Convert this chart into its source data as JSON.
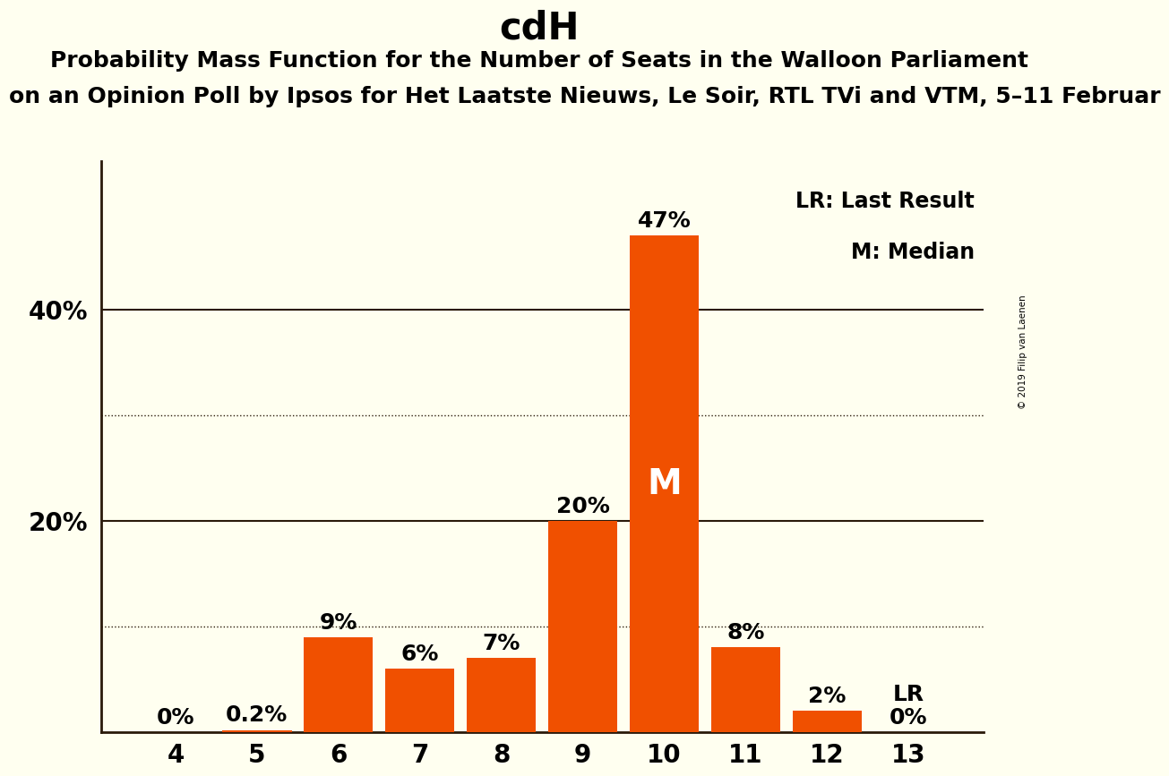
{
  "title": "cdH",
  "subtitle1": "Probability Mass Function for the Number of Seats in the Walloon Parliament",
  "subtitle2": "on an Opinion Poll by Ipsos for Het Laatste Nieuws, Le Soir, RTL TVi and VTM, 5–11 Februar",
  "categories": [
    4,
    5,
    6,
    7,
    8,
    9,
    10,
    11,
    12,
    13
  ],
  "values": [
    0.0,
    0.2,
    9.0,
    6.0,
    7.0,
    20.0,
    47.0,
    8.0,
    2.0,
    0.0
  ],
  "bar_color": "#f05000",
  "background_color": "#fffff0",
  "solid_gridlines": [
    20,
    40
  ],
  "dotted_gridlines": [
    10,
    30
  ],
  "bar_labels": [
    "0%",
    "0.2%",
    "9%",
    "6%",
    "7%",
    "20%",
    "47%",
    "8%",
    "2%",
    "0%"
  ],
  "median_bar": 10,
  "median_label": "M",
  "lr_bar": 13,
  "lr_label": "LR",
  "legend_lr": "LR: Last Result",
  "legend_m": "M: Median",
  "copyright": "© 2019 Filip van Laenen",
  "title_fontsize": 30,
  "subtitle1_fontsize": 18,
  "subtitle2_fontsize": 18,
  "bar_label_fontsize": 18,
  "axis_tick_fontsize": 20,
  "ylim": [
    0,
    54
  ],
  "ytick_positions": [
    20,
    40
  ],
  "ytick_labels": [
    "20%",
    "40%"
  ]
}
